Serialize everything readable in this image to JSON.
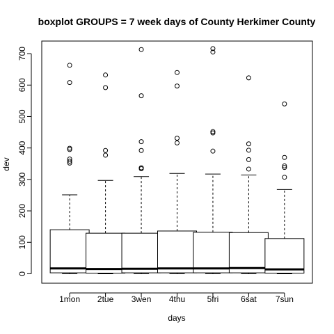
{
  "chart_data": {
    "type": "boxplot",
    "title": "boxplot GROUPS = 7 week days of County Herkimer County",
    "xlabel": "days",
    "ylabel": "dev",
    "ylim": [
      -30,
      740
    ],
    "yticks": [
      0,
      100,
      200,
      300,
      400,
      500,
      600,
      700
    ],
    "categories": [
      "1mon",
      "2tue",
      "3wen",
      "4thu",
      "5fri",
      "6sat",
      "7sun"
    ],
    "boxes": [
      {
        "name": "1mon",
        "min": 0,
        "q1": 3,
        "median": 17,
        "q3": 140,
        "max": 251,
        "outliers": [
          663,
          608,
          399,
          395,
          365,
          358,
          352
        ]
      },
      {
        "name": "2tue",
        "min": 0,
        "q1": 2,
        "median": 15,
        "q3": 129,
        "max": 297,
        "outliers": [
          632,
          592,
          392,
          377
        ]
      },
      {
        "name": "3wen",
        "min": 0,
        "q1": 3,
        "median": 16,
        "q3": 129,
        "max": 309,
        "outliers": [
          713,
          566,
          420,
          392,
          337,
          334
        ]
      },
      {
        "name": "4thu",
        "min": 0,
        "q1": 3,
        "median": 17,
        "q3": 136,
        "max": 319,
        "outliers": [
          640,
          597,
          431,
          416
        ]
      },
      {
        "name": "5fri",
        "min": 0,
        "q1": 3,
        "median": 17,
        "q3": 132,
        "max": 317,
        "outliers": [
          716,
          705,
          452,
          448,
          390
        ]
      },
      {
        "name": "6sat",
        "min": 0,
        "q1": 3,
        "median": 18,
        "q3": 131,
        "max": 314,
        "outliers": [
          623,
          413,
          393,
          363,
          333
        ]
      },
      {
        "name": "7sun",
        "min": 0,
        "q1": 2,
        "median": 14,
        "q3": 112,
        "max": 268,
        "outliers": [
          540,
          370,
          343,
          338,
          307
        ]
      }
    ],
    "grid": false,
    "legend": "none"
  }
}
